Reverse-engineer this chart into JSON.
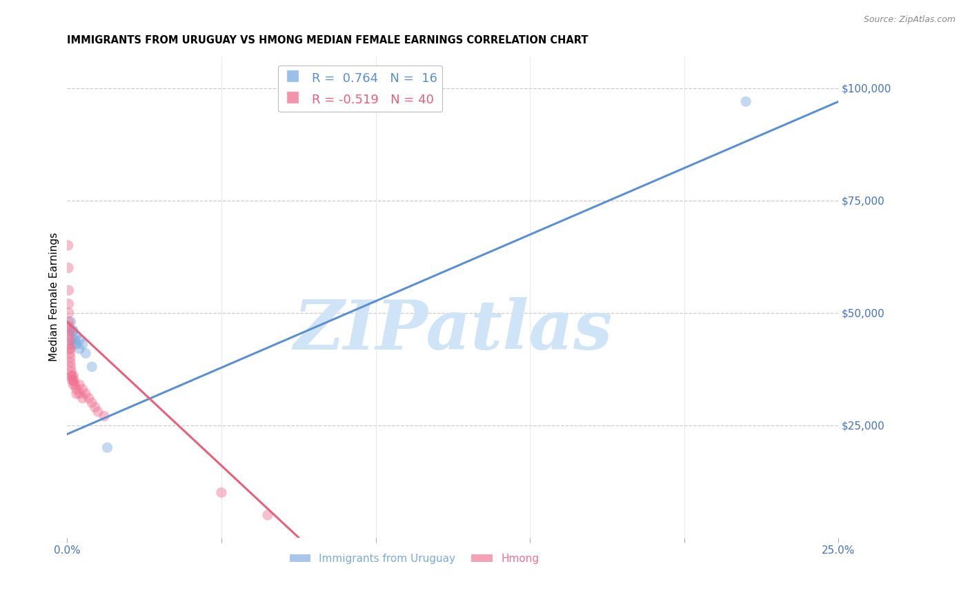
{
  "title": "IMMIGRANTS FROM URUGUAY VS HMONG MEDIAN FEMALE EARNINGS CORRELATION CHART",
  "source": "Source: ZipAtlas.com",
  "ylabel": "Median Female Earnings",
  "right_ytick_labels": [
    "$25,000",
    "$50,000",
    "$75,000",
    "$100,000"
  ],
  "right_ytick_values": [
    25000,
    50000,
    75000,
    100000
  ],
  "xlim": [
    0.0,
    0.25
  ],
  "ylim": [
    0,
    107000
  ],
  "legend_entries": [
    {
      "label": "R =  0.764   N =  16",
      "color": "#5b8fd4"
    },
    {
      "label": "R = -0.519   N = 40",
      "color": "#e8607a"
    }
  ],
  "bottom_legend": [
    {
      "label": "Immigrants from Uruguay",
      "color": "#7aaae0"
    },
    {
      "label": "Hmong",
      "color": "#f07090"
    }
  ],
  "uruguay_scatter": [
    [
      0.0008,
      46000
    ],
    [
      0.0012,
      48000
    ],
    [
      0.0015,
      44000
    ],
    [
      0.0018,
      46000
    ],
    [
      0.002,
      43000
    ],
    [
      0.002,
      46000
    ],
    [
      0.0025,
      44000
    ],
    [
      0.003,
      45000
    ],
    [
      0.003,
      43000
    ],
    [
      0.004,
      44000
    ],
    [
      0.004,
      42000
    ],
    [
      0.005,
      43000
    ],
    [
      0.006,
      41000
    ],
    [
      0.008,
      38000
    ],
    [
      0.013,
      20000
    ],
    [
      0.22,
      97000
    ]
  ],
  "hmong_scatter": [
    [
      0.0003,
      65000
    ],
    [
      0.0004,
      60000
    ],
    [
      0.0005,
      55000
    ],
    [
      0.0005,
      52000
    ],
    [
      0.0005,
      50000
    ],
    [
      0.0006,
      48000
    ],
    [
      0.0006,
      47000
    ],
    [
      0.0007,
      46000
    ],
    [
      0.0007,
      45000
    ],
    [
      0.0008,
      44000
    ],
    [
      0.0008,
      43000
    ],
    [
      0.0009,
      42000
    ],
    [
      0.001,
      42000
    ],
    [
      0.001,
      41000
    ],
    [
      0.001,
      40000
    ],
    [
      0.001,
      39000
    ],
    [
      0.0012,
      38000
    ],
    [
      0.0013,
      37000
    ],
    [
      0.0014,
      36000
    ],
    [
      0.0015,
      36000
    ],
    [
      0.0016,
      35000
    ],
    [
      0.0018,
      35000
    ],
    [
      0.002,
      34000
    ],
    [
      0.002,
      36000
    ],
    [
      0.0022,
      35000
    ],
    [
      0.0025,
      34000
    ],
    [
      0.003,
      33000
    ],
    [
      0.003,
      32000
    ],
    [
      0.004,
      34000
    ],
    [
      0.004,
      32000
    ],
    [
      0.005,
      33000
    ],
    [
      0.005,
      31000
    ],
    [
      0.006,
      32000
    ],
    [
      0.007,
      31000
    ],
    [
      0.008,
      30000
    ],
    [
      0.009,
      29000
    ],
    [
      0.01,
      28000
    ],
    [
      0.012,
      27000
    ],
    [
      0.05,
      10000
    ],
    [
      0.065,
      5000
    ]
  ],
  "uruguay_line_x": [
    0.0,
    0.25
  ],
  "uruguay_line_y": [
    23000,
    97000
  ],
  "hmong_line_x": [
    0.0,
    0.075
  ],
  "hmong_line_y": [
    48000,
    0
  ],
  "scatter_size": 120,
  "scatter_alpha": 0.45,
  "line_width": 2.2,
  "bg_color": "#ffffff",
  "grid_color": "#cccccc",
  "watermark_text": "ZIPatlas",
  "watermark_color": "#d0e4f8",
  "title_fontsize": 10.5,
  "axis_label_color": "#4472c4",
  "ylabel_fontsize": 11,
  "source_text": "Source: ZipAtlas.com"
}
